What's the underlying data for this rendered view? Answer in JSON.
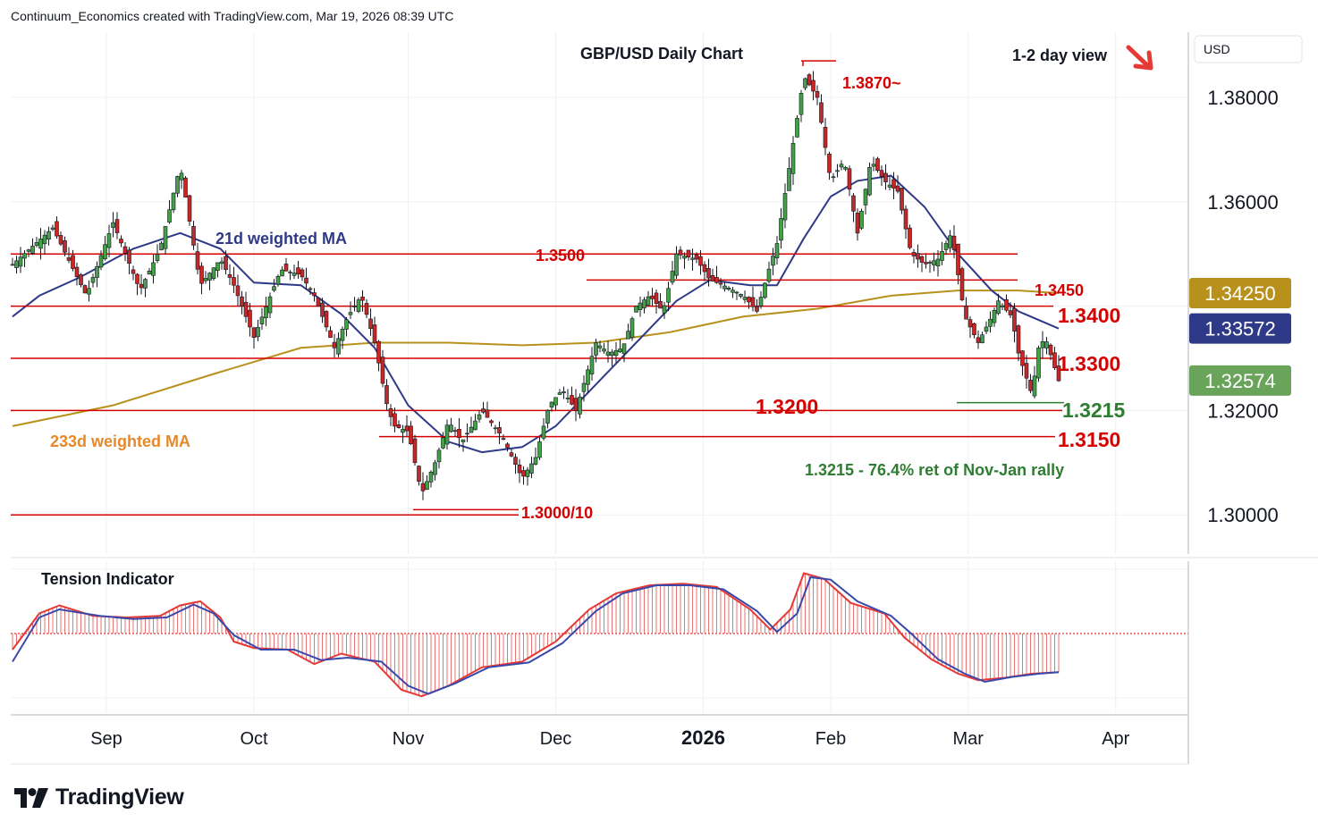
{
  "header": "Continuum_Economics created with TradingView.com, Mar 19, 2026 08:39 UTC",
  "branding": {
    "logo_text": "TradingView",
    "logo_icon": "tradingview-logo-icon"
  },
  "chart_data": {
    "type": "candlestick",
    "title": "GBP/USD Daily Chart",
    "view_label": "1-2 day view",
    "view_icon": "down-arrow-icon",
    "currency": "USD",
    "ylim": [
      1.2925,
      1.3925
    ],
    "y_ticks": [
      1.3,
      1.32,
      1.36,
      1.38
    ],
    "y_tick_labels": [
      "1.30000",
      "1.32000",
      "1.36000",
      "1.38000"
    ],
    "x_ticks": [
      "Sep",
      "Oct",
      "Nov",
      "Dec",
      "2026",
      "Feb",
      "Mar",
      "Apr"
    ],
    "price_badges": [
      {
        "label": "1.34250",
        "value": 1.3425,
        "color": "#b8911d"
      },
      {
        "label": "1.33572",
        "value": 1.33572,
        "color": "#2e3a87"
      },
      {
        "label": "1.32574",
        "value": 1.32574,
        "color": "#6aa35a"
      }
    ],
    "levels": [
      {
        "value": 1.35,
        "label": "1.3500"
      },
      {
        "value": 1.345,
        "label": "1.3450"
      },
      {
        "value": 1.34,
        "label": "1.3400"
      },
      {
        "value": 1.33,
        "label": "1.3300"
      },
      {
        "value": 1.32,
        "label": "1.3200"
      },
      {
        "value": 1.315,
        "label": "1.3150"
      },
      {
        "value": 1.3,
        "label": "1.3000/10"
      },
      {
        "value": 1.387,
        "label": "1.3870~"
      }
    ],
    "support_level": {
      "value": 1.3215,
      "label": "1.3215",
      "note": "1.3215 - 76.4% ret of Nov-Jan rally"
    },
    "ma_labels": {
      "ma21": "21d weighted MA",
      "ma233": "233d weighted MA"
    },
    "indicator_label": "Tension Indicator",
    "colors": {
      "up": "#43a047",
      "down": "#c62828",
      "ma21": "#2e3a87",
      "ma233": "#b8911d",
      "level": "#d50000",
      "support": "#2e7d32"
    },
    "price_path": [
      [
        0,
        1.348
      ],
      [
        12,
        1.355
      ],
      [
        22,
        1.342
      ],
      [
        30,
        1.356
      ],
      [
        38,
        1.343
      ],
      [
        44,
        1.351
      ],
      [
        50,
        1.367
      ],
      [
        56,
        1.344
      ],
      [
        62,
        1.349
      ],
      [
        66,
        1.344
      ],
      [
        72,
        1.334
      ],
      [
        80,
        1.347
      ],
      [
        86,
        1.346
      ],
      [
        90,
        1.342
      ],
      [
        96,
        1.332
      ],
      [
        100,
        1.338
      ],
      [
        104,
        1.342
      ],
      [
        108,
        1.333
      ],
      [
        112,
        1.32
      ],
      [
        114,
        1.317
      ],
      [
        118,
        1.316
      ],
      [
        122,
        1.304
      ],
      [
        126,
        1.31
      ],
      [
        130,
        1.318
      ],
      [
        134,
        1.314
      ],
      [
        140,
        1.32
      ],
      [
        146,
        1.315
      ],
      [
        152,
        1.307
      ],
      [
        156,
        1.311
      ],
      [
        160,
        1.321
      ],
      [
        164,
        1.324
      ],
      [
        168,
        1.32
      ],
      [
        174,
        1.333
      ],
      [
        178,
        1.331
      ],
      [
        182,
        1.332
      ],
      [
        186,
        1.34
      ],
      [
        190,
        1.342
      ],
      [
        194,
        1.339
      ],
      [
        198,
        1.35
      ],
      [
        204,
        1.349
      ],
      [
        208,
        1.345
      ],
      [
        212,
        1.344
      ],
      [
        218,
        1.342
      ],
      [
        222,
        1.339
      ],
      [
        226,
        1.348
      ],
      [
        228,
        1.352
      ],
      [
        232,
        1.368
      ],
      [
        236,
        1.384
      ],
      [
        240,
        1.38
      ],
      [
        244,
        1.364
      ],
      [
        248,
        1.368
      ],
      [
        252,
        1.354
      ],
      [
        256,
        1.368
      ],
      [
        260,
        1.364
      ],
      [
        264,
        1.362
      ],
      [
        268,
        1.35
      ],
      [
        272,
        1.348
      ],
      [
        276,
        1.349
      ],
      [
        280,
        1.354
      ],
      [
        284,
        1.338
      ],
      [
        288,
        1.333
      ],
      [
        292,
        1.338
      ],
      [
        294,
        1.341
      ],
      [
        298,
        1.338
      ],
      [
        300,
        1.331
      ],
      [
        304,
        1.323
      ],
      [
        306,
        1.332
      ],
      [
        308,
        1.334
      ],
      [
        312,
        1.3257
      ]
    ],
    "ma21_path": [
      [
        0,
        1.338
      ],
      [
        8,
        1.342
      ],
      [
        20,
        1.3455
      ],
      [
        36,
        1.351
      ],
      [
        50,
        1.354
      ],
      [
        62,
        1.351
      ],
      [
        72,
        1.3445
      ],
      [
        86,
        1.344
      ],
      [
        98,
        1.3385
      ],
      [
        108,
        1.332
      ],
      [
        118,
        1.321
      ],
      [
        130,
        1.314
      ],
      [
        140,
        1.312
      ],
      [
        152,
        1.313
      ],
      [
        162,
        1.317
      ],
      [
        174,
        1.325
      ],
      [
        186,
        1.333
      ],
      [
        198,
        1.341
      ],
      [
        208,
        1.345
      ],
      [
        220,
        1.344
      ],
      [
        228,
        1.344
      ],
      [
        236,
        1.353
      ],
      [
        244,
        1.361
      ],
      [
        252,
        1.364
      ],
      [
        262,
        1.365
      ],
      [
        272,
        1.359
      ],
      [
        282,
        1.35
      ],
      [
        292,
        1.343
      ],
      [
        300,
        1.339
      ],
      [
        312,
        1.3357
      ]
    ],
    "ma233_path": [
      [
        0,
        1.317
      ],
      [
        30,
        1.321
      ],
      [
        60,
        1.327
      ],
      [
        86,
        1.332
      ],
      [
        108,
        1.333
      ],
      [
        130,
        1.333
      ],
      [
        152,
        1.3325
      ],
      [
        174,
        1.333
      ],
      [
        196,
        1.335
      ],
      [
        218,
        1.338
      ],
      [
        240,
        1.3395
      ],
      [
        262,
        1.342
      ],
      [
        282,
        1.343
      ],
      [
        300,
        1.343
      ],
      [
        312,
        1.3425
      ]
    ],
    "tension_indicator": {
      "ylim": [
        -0.9,
        1.0
      ],
      "histogram": [
        [
          0,
          -0.2
        ],
        [
          8,
          0.25
        ],
        [
          14,
          0.35
        ],
        [
          24,
          0.22
        ],
        [
          34,
          0.2
        ],
        [
          44,
          0.22
        ],
        [
          50,
          0.35
        ],
        [
          56,
          0.4
        ],
        [
          62,
          0.2
        ],
        [
          66,
          -0.1
        ],
        [
          72,
          -0.18
        ],
        [
          82,
          -0.2
        ],
        [
          90,
          -0.38
        ],
        [
          98,
          -0.25
        ],
        [
          108,
          -0.35
        ],
        [
          116,
          -0.7
        ],
        [
          122,
          -0.78
        ],
        [
          130,
          -0.65
        ],
        [
          140,
          -0.42
        ],
        [
          152,
          -0.35
        ],
        [
          162,
          -0.1
        ],
        [
          172,
          0.3
        ],
        [
          180,
          0.5
        ],
        [
          190,
          0.6
        ],
        [
          200,
          0.62
        ],
        [
          210,
          0.58
        ],
        [
          220,
          0.3
        ],
        [
          226,
          0.05
        ],
        [
          232,
          0.3
        ],
        [
          236,
          0.75
        ],
        [
          242,
          0.68
        ],
        [
          250,
          0.38
        ],
        [
          260,
          0.25
        ],
        [
          266,
          -0.05
        ],
        [
          274,
          -0.32
        ],
        [
          282,
          -0.5
        ],
        [
          288,
          -0.58
        ],
        [
          296,
          -0.55
        ],
        [
          304,
          -0.5
        ],
        [
          312,
          -0.48
        ]
      ],
      "signal": [
        [
          0,
          -0.35
        ],
        [
          8,
          0.2
        ],
        [
          14,
          0.3
        ],
        [
          26,
          0.22
        ],
        [
          36,
          0.18
        ],
        [
          46,
          0.2
        ],
        [
          54,
          0.36
        ],
        [
          60,
          0.25
        ],
        [
          66,
          -0.02
        ],
        [
          74,
          -0.2
        ],
        [
          84,
          -0.2
        ],
        [
          92,
          -0.33
        ],
        [
          100,
          -0.3
        ],
        [
          110,
          -0.35
        ],
        [
          118,
          -0.65
        ],
        [
          124,
          -0.75
        ],
        [
          132,
          -0.62
        ],
        [
          142,
          -0.42
        ],
        [
          154,
          -0.36
        ],
        [
          164,
          -0.12
        ],
        [
          174,
          0.28
        ],
        [
          182,
          0.5
        ],
        [
          192,
          0.6
        ],
        [
          202,
          0.6
        ],
        [
          212,
          0.55
        ],
        [
          222,
          0.28
        ],
        [
          228,
          0.02
        ],
        [
          234,
          0.25
        ],
        [
          238,
          0.7
        ],
        [
          244,
          0.67
        ],
        [
          252,
          0.4
        ],
        [
          262,
          0.22
        ],
        [
          268,
          0.0
        ],
        [
          276,
          -0.32
        ],
        [
          284,
          -0.5
        ],
        [
          290,
          -0.6
        ],
        [
          298,
          -0.54
        ],
        [
          306,
          -0.5
        ],
        [
          312,
          -0.48
        ]
      ]
    }
  }
}
